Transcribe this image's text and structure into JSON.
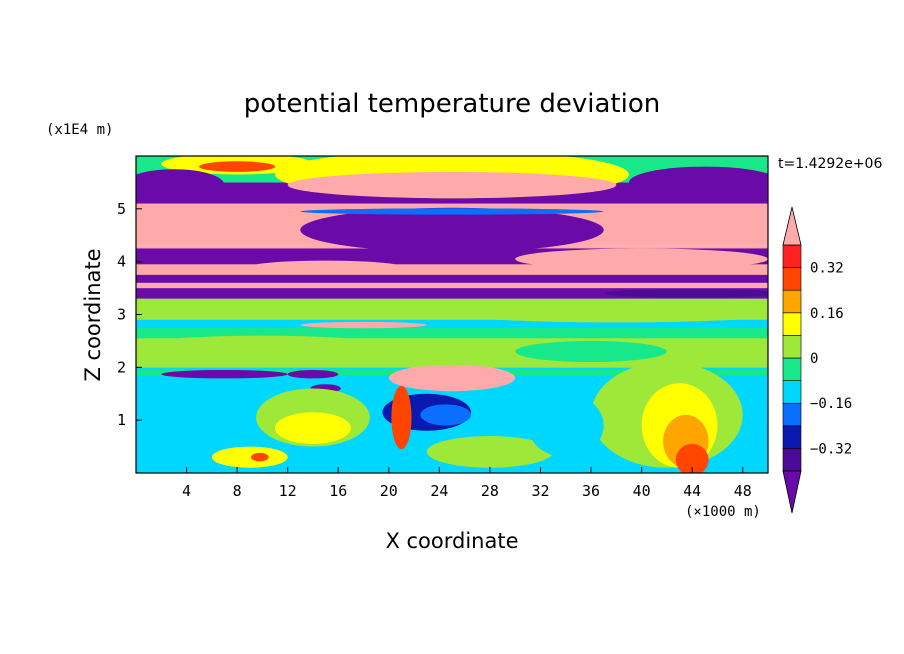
{
  "chart_data": {
    "type": "heatmap",
    "title": "potential temperature deviation",
    "xlabel": "X coordinate",
    "ylabel": "Z coordinate",
    "x_unit": "(×1000 m)",
    "y_unit": "(x1E4 m)",
    "time_label": "t=1.4292e+06",
    "xlim": [
      0,
      50
    ],
    "ylim": [
      0,
      6
    ],
    "x_ticks": [
      4,
      8,
      12,
      16,
      20,
      24,
      28,
      32,
      36,
      40,
      44,
      48
    ],
    "y_ticks": [
      1,
      2,
      3,
      4,
      5
    ],
    "colorbar": {
      "levels": [
        -0.4,
        -0.32,
        -0.24,
        -0.16,
        -0.08,
        0,
        0.08,
        0.16,
        0.24,
        0.32,
        0.4
      ],
      "tick_labels": [
        "0.32",
        "0.16",
        "0",
        "−0.16",
        "−0.32"
      ],
      "tick_values": [
        0.32,
        0.16,
        0,
        -0.16,
        -0.32
      ],
      "colors_low_to_high": [
        "#6a0aa8",
        "#4b0b96",
        "#0a1ab0",
        "#0a6eff",
        "#00d7ff",
        "#19e88a",
        "#9ee83a",
        "#ffff00",
        "#ffa500",
        "#ff4500",
        "#ff2020",
        "#ffaaaa"
      ]
    },
    "bands": [
      {
        "z_range": [
          5.5,
          6.0
        ],
        "dominant": "mixed yellow/cyan"
      },
      {
        "z_range": [
          5.1,
          5.5
        ],
        "dominant": "purple / pink"
      },
      {
        "z_range": [
          4.3,
          5.0
        ],
        "dominant": "pink / purple"
      },
      {
        "z_range": [
          3.3,
          4.3
        ],
        "dominant": "purple / pink stripes"
      },
      {
        "z_range": [
          2.0,
          3.3
        ],
        "dominant": "green / cyan"
      },
      {
        "z_range": [
          0.0,
          2.0
        ],
        "dominant": "cyan / green / yellow"
      }
    ]
  }
}
